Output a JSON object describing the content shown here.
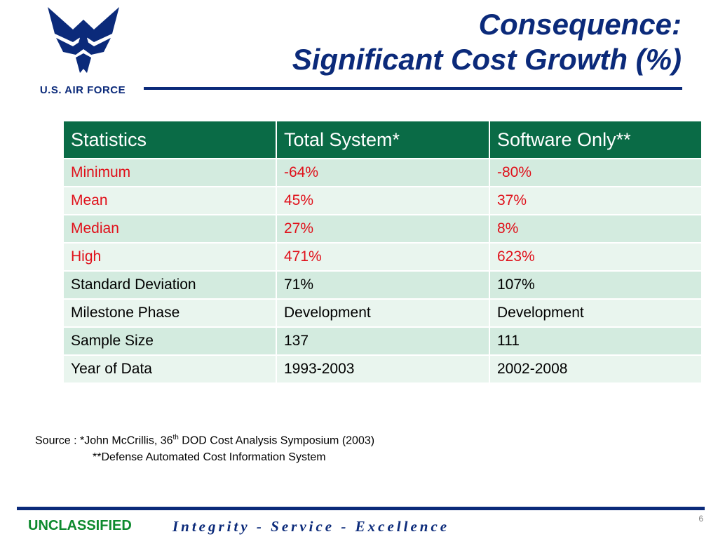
{
  "logo": {
    "text": "U.S. AIR FORCE"
  },
  "title": {
    "line1": "Consequence:",
    "line2": "Significant Cost Growth (%)"
  },
  "table": {
    "headers": [
      "Statistics",
      "Total System*",
      "Software Only**"
    ],
    "rows": [
      [
        "Minimum",
        "-64%",
        "-80%"
      ],
      [
        "Mean",
        "45%",
        "37%"
      ],
      [
        "Median",
        "27%",
        "8%"
      ],
      [
        "High",
        "471%",
        "623%"
      ],
      [
        "Standard Deviation",
        "71%",
        "107%"
      ],
      [
        "Milestone Phase",
        "Development",
        "Development"
      ],
      [
        "Sample Size",
        "137",
        "111"
      ],
      [
        "Year of Data",
        "1993-2003",
        "2002-2008"
      ]
    ]
  },
  "source": {
    "prefix": "Source : *John McCrillis, 36",
    "sup": "th",
    "suffix": " DOD Cost Analysis Symposium (2003)",
    "line2": "**Defense Automated Cost Information System"
  },
  "footer": {
    "classification": "UNCLASSIFIED",
    "motto": "Integrity - Service - Excellence",
    "page_number": "6"
  },
  "colors": {
    "brand_blue": "#0b2a7a",
    "header_green": "#0a6b46",
    "row_dark": "#d3ebdf",
    "row_light": "#e9f5ee",
    "highlight_red": "#e0101a",
    "unclassified_green": "#0e8a2e"
  }
}
